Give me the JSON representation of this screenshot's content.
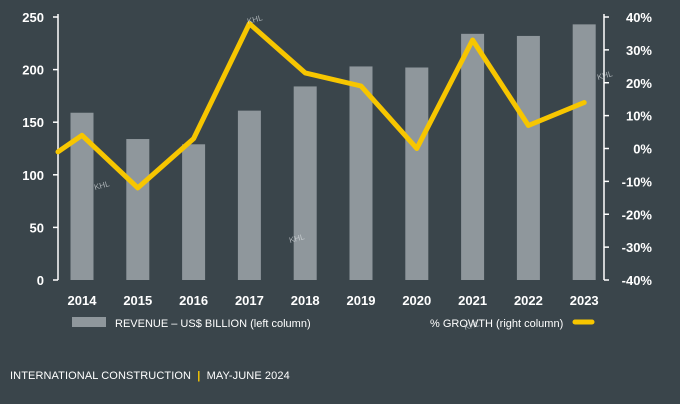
{
  "chart_data": {
    "type": "bar+line",
    "categories": [
      "2014",
      "2015",
      "2016",
      "2017",
      "2018",
      "2019",
      "2020",
      "2021",
      "2022",
      "2023"
    ],
    "series": [
      {
        "name": "REVENUE – US$ BILLION (left column)",
        "type": "bar",
        "axis": "left",
        "values": [
          159,
          134,
          129,
          161,
          184,
          203,
          202,
          234,
          232,
          243
        ]
      },
      {
        "name": "% GROWTH (right column)",
        "type": "line",
        "axis": "right",
        "start_value": -1,
        "values": [
          4,
          -12,
          3,
          38,
          23,
          19,
          0,
          33,
          7,
          14
        ]
      }
    ],
    "left_axis": {
      "min": 0,
      "max": 250,
      "ticks": [
        "0",
        "50",
        "100",
        "150",
        "200",
        "250"
      ]
    },
    "right_axis": {
      "min": -40,
      "max": 40,
      "ticks": [
        "-40%",
        "-30%",
        "-20%",
        "-10%",
        "0%",
        "10%",
        "20%",
        "30%",
        "40%"
      ]
    },
    "legend": {
      "position": "bottom"
    },
    "colors": {
      "background": "#3a454b",
      "bar": "#8f979c",
      "line": "#f7c600",
      "axis": "#ffffff"
    }
  },
  "watermark": "KHL",
  "footer": {
    "publication": "INTERNATIONAL CONSTRUCTION",
    "separator": "|",
    "issue": "MAY-JUNE 2024"
  }
}
